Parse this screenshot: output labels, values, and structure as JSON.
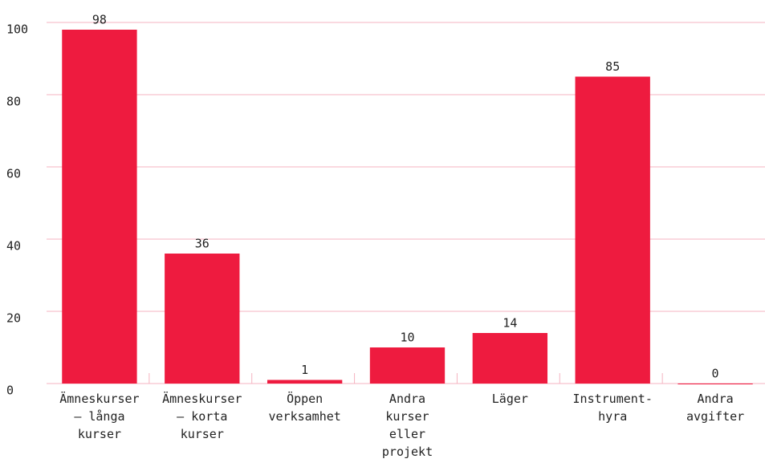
{
  "chart_data": {
    "type": "bar",
    "categories": [
      "Ämneskurser\n– långa\nkurser",
      "Ämneskurser\n– korta\nkurser",
      "Öppen\nverksamhet",
      "Andra\nkurser\neller\nprojekt",
      "Läger",
      "Instrument-\nhyra",
      "Andra\navgifter"
    ],
    "values": [
      98,
      36,
      1,
      10,
      14,
      85,
      0
    ],
    "color": "#ee1b3f",
    "ylim": [
      0,
      100
    ],
    "yticks": [
      0,
      20,
      40,
      60,
      80,
      100
    ],
    "grid": true
  }
}
